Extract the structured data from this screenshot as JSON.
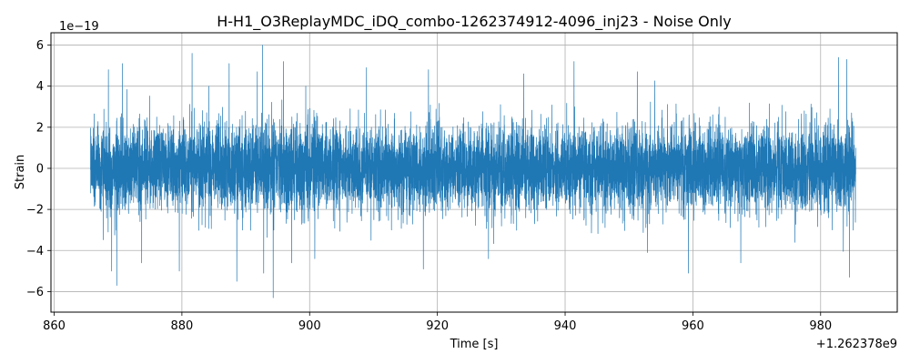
{
  "chart_data": {
    "type": "line",
    "title": "H-H1_O3ReplayMDC_iDQ_combo-1262374912-4096_inj23 - Noise Only",
    "xlabel": "Time [s]",
    "ylabel": "Strain",
    "x_offset_label": "+1.262378e9",
    "y_scale_label": "1e−19",
    "xlim": [
      859.5,
      992
    ],
    "ylim": [
      -7,
      6.6
    ],
    "x_ticks": [
      860,
      880,
      900,
      920,
      940,
      960,
      980
    ],
    "x_tick_labels": [
      "860",
      "880",
      "900",
      "920",
      "940",
      "960",
      "980"
    ],
    "y_ticks": [
      -6,
      -4,
      -2,
      0,
      2,
      4,
      6
    ],
    "y_tick_labels": [
      "−6",
      "−4",
      "−2",
      "0",
      "2",
      "4",
      "6"
    ],
    "grid": true,
    "series": [
      {
        "color": "#1f77b4",
        "x_range": [
          865.7,
          985.5
        ],
        "peaks": [
          {
            "x": 869.0,
            "y": -5.0
          },
          {
            "x": 868.5,
            "y": 4.8
          },
          {
            "x": 869.8,
            "y": -5.7
          },
          {
            "x": 870.7,
            "y": 5.1
          },
          {
            "x": 873.7,
            "y": -4.6
          },
          {
            "x": 879.6,
            "y": -5.0
          },
          {
            "x": 881.6,
            "y": 5.6
          },
          {
            "x": 884.2,
            "y": 4.0
          },
          {
            "x": 887.4,
            "y": 5.1
          },
          {
            "x": 888.6,
            "y": -5.5
          },
          {
            "x": 891.8,
            "y": 4.7
          },
          {
            "x": 892.6,
            "y": 6.0
          },
          {
            "x": 892.8,
            "y": -5.1
          },
          {
            "x": 894.3,
            "y": -6.3
          },
          {
            "x": 895.9,
            "y": 5.2
          },
          {
            "x": 897.2,
            "y": -4.6
          },
          {
            "x": 899.4,
            "y": 4.0
          },
          {
            "x": 900.8,
            "y": -4.4
          },
          {
            "x": 908.9,
            "y": 4.9
          },
          {
            "x": 917.8,
            "y": -4.9
          },
          {
            "x": 918.6,
            "y": 4.8
          },
          {
            "x": 928.0,
            "y": -4.4
          },
          {
            "x": 933.5,
            "y": 4.6
          },
          {
            "x": 941.4,
            "y": 5.2
          },
          {
            "x": 951.3,
            "y": 4.7
          },
          {
            "x": 952.9,
            "y": -4.1
          },
          {
            "x": 959.3,
            "y": -5.1
          },
          {
            "x": 967.5,
            "y": -4.6
          },
          {
            "x": 982.8,
            "y": 5.4
          },
          {
            "x": 984.1,
            "y": 5.3
          },
          {
            "x": 984.5,
            "y": -5.3
          }
        ]
      }
    ]
  }
}
